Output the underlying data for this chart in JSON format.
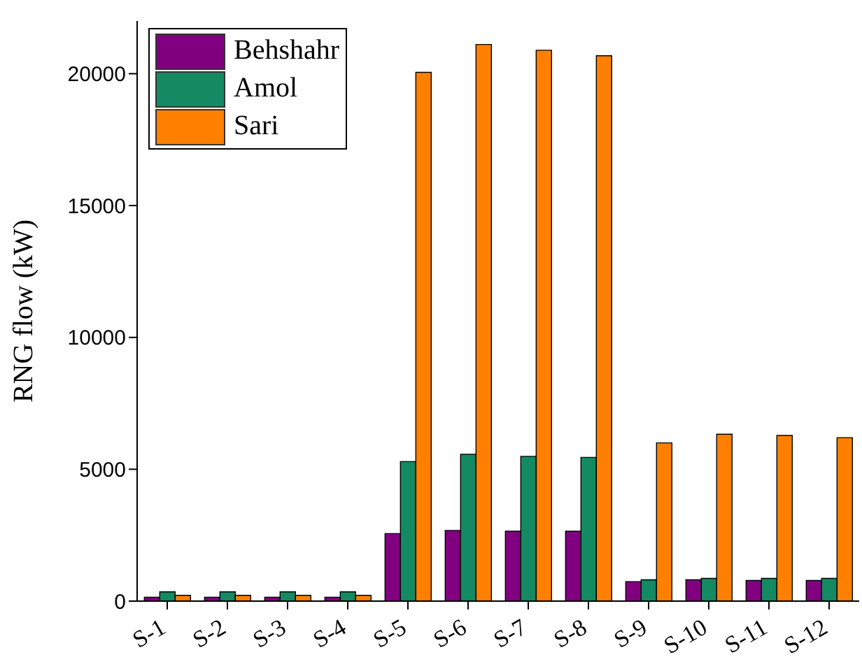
{
  "chart_data": {
    "type": "bar",
    "ylabel": "RNG flow (kW)",
    "categories": [
      "S-1",
      "S-2",
      "S-3",
      "S-4",
      "S-5",
      "S-6",
      "S-7",
      "S-8",
      "S-9",
      "S-10",
      "S-11",
      "S-12"
    ],
    "series": [
      {
        "name": "Behshahr",
        "color": "#800080",
        "values": [
          150,
          150,
          150,
          150,
          2560,
          2680,
          2650,
          2650,
          740,
          810,
          780,
          780
        ]
      },
      {
        "name": "Amol",
        "color": "#138a62",
        "values": [
          350,
          350,
          350,
          350,
          5290,
          5570,
          5490,
          5450,
          810,
          860,
          860,
          860
        ]
      },
      {
        "name": "Sari",
        "color": "#ff8000",
        "values": [
          220,
          220,
          220,
          220,
          20050,
          21110,
          20890,
          20680,
          6000,
          6330,
          6280,
          6200
        ]
      }
    ],
    "ylim": [
      0,
      22000
    ],
    "yticks": [
      0,
      5000,
      10000,
      15000,
      20000
    ],
    "grid": false,
    "legend": "top left"
  }
}
